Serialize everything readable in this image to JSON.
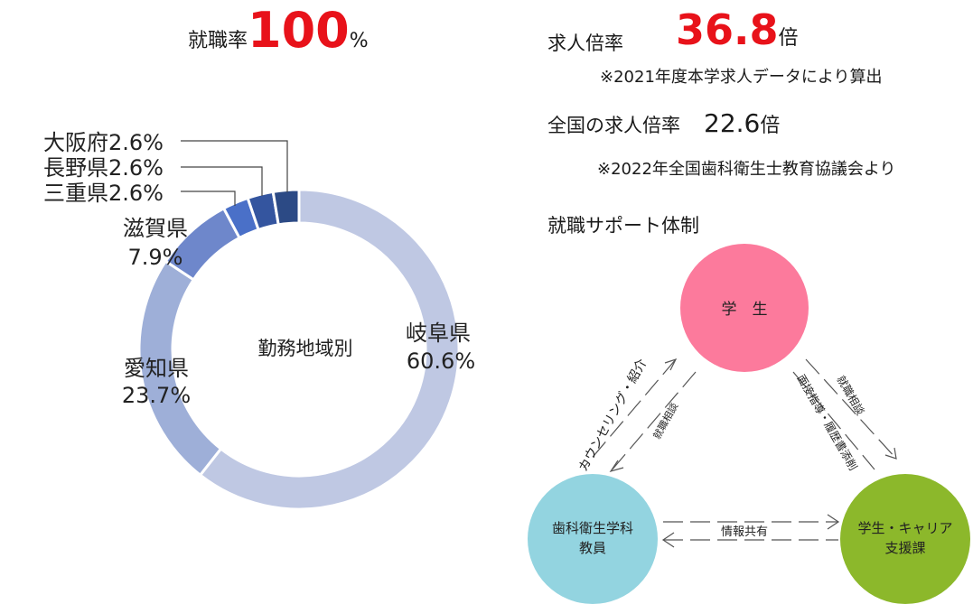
{
  "employment": {
    "label": "就職率",
    "value": "100",
    "unit": "%"
  },
  "job_offers": {
    "label": "求人倍率",
    "value": "36.8",
    "unit": "倍",
    "note": "※2021年度本学求人データにより算出"
  },
  "national": {
    "label": "全国の求人倍率",
    "value": "22.6",
    "unit": "倍",
    "note": "※2022年全国歯科衛生士教育協議会より"
  },
  "support": {
    "title": "就職サポート体制",
    "student": "学　生",
    "teachers": [
      "歯科衛生学科",
      "教員"
    ],
    "career": [
      "学生・キャリア",
      "支援課"
    ],
    "left_outer": "カウンセリング・紹介",
    "left_inner": "就職相談",
    "right_outer": "就職相談",
    "right_inner": "面接指導・履歴書添削",
    "bottom": "情報共有"
  },
  "chart_data": {
    "type": "pie",
    "center_label": "勤務地域別",
    "unit": "%",
    "slices": [
      {
        "label": "岐阜県",
        "value": 60.6,
        "value_label": "60.6%",
        "color": "#bfc8e3"
      },
      {
        "label": "愛知県",
        "value": 23.7,
        "value_label": "23.7%",
        "color": "#9eafd8"
      },
      {
        "label": "滋賀県",
        "value": 7.9,
        "value_label": "7.9%",
        "color": "#6e87cb"
      },
      {
        "label": "三重県",
        "value": 2.6,
        "value_label": "2.6%",
        "color": "#4a70c8"
      },
      {
        "label": "長野県",
        "value": 2.6,
        "value_label": "2.6%",
        "color": "#34559f"
      },
      {
        "label": "大阪府",
        "value": 2.6,
        "value_label": "2.6%",
        "color": "#2c4a85"
      }
    ]
  }
}
